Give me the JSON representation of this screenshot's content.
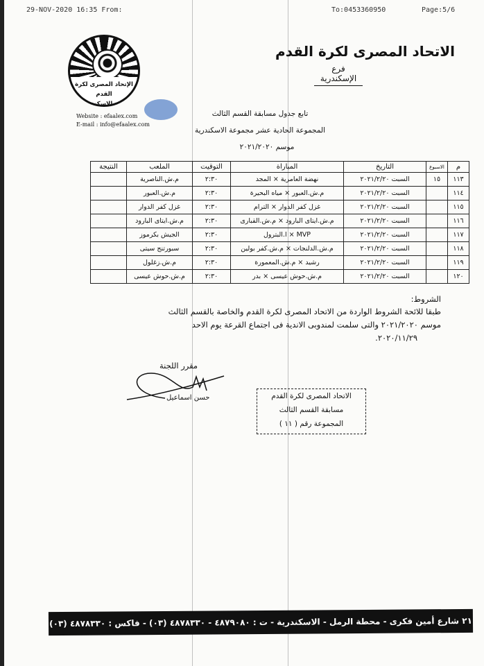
{
  "fax_header": {
    "timestamp": "29-NOV-2020 16:35 From:",
    "to": "To:0453360950",
    "page": "Page:5/6"
  },
  "letterhead": {
    "title": "الاتحاد المصرى لكرة القدم",
    "subtitle": "فرع الإسكندرية",
    "logo_text_1": "الإتحاد المصرى لكرة القدم",
    "logo_text_2": "فرع الاسكندرية",
    "website": "Website : efaalex.com",
    "email": "E-mail : info@efaalex.com"
  },
  "document": {
    "heading_1": "تابع جدول مسابقة القسم الثالث",
    "heading_2": "المجموعة الحادية عشر مجموعة الاسكندرية",
    "heading_3": "موسم ٢٠٢١/٢٠٢٠"
  },
  "table": {
    "headers": [
      "م",
      "الاسبوع",
      "التاريخ",
      "المباراة",
      "التوقيت",
      "الملعب",
      "النتيجة"
    ],
    "rows": [
      {
        "no": "١١٣",
        "week": "١٥",
        "date": "السبت ٢٠٢١/٢/٢٠",
        "match": "نهضة العامرية × المجد",
        "time": "٢:٣٠",
        "venue": "م.ش.الناصرية",
        "result": ""
      },
      {
        "no": "١١٤",
        "week": "",
        "date": "السبت ٢٠٢١/٢/٢٠",
        "match": "م.ش.العبور × مياه البحيرة",
        "time": "٢:٣٠",
        "venue": "م.ش.العبور",
        "result": ""
      },
      {
        "no": "١١٥",
        "week": "",
        "date": "السبت ٢٠٢١/٢/٢٠",
        "match": "غزل كفر الدوار × الترام",
        "time": "٢:٣٠",
        "venue": "غزل كفر الدوار",
        "result": ""
      },
      {
        "no": "١١٦",
        "week": "",
        "date": "السبت ٢٠٢١/٢/٢٠",
        "match": "م.ش.ايتاى البارود × م.ش.القبارى",
        "time": "٢:٣٠",
        "venue": "م.ش.ايتاى البارود",
        "result": ""
      },
      {
        "no": "١١٧",
        "week": "",
        "date": "السبت ٢٠٢١/٢/٢٠",
        "match": "MVP × ا.البترول",
        "time": "٢:٣٠",
        "venue": "الجيش بكرموز",
        "result": ""
      },
      {
        "no": "١١٨",
        "week": "",
        "date": "السبت ٢٠٢١/٢/٢٠",
        "match": "م.ش.الدلنجات × م.ش.كفر بولين",
        "time": "٢:٣٠",
        "venue": "سبورتنج سيتى",
        "result": ""
      },
      {
        "no": "١١٩",
        "week": "",
        "date": "السبت ٢٠٢١/٢/٢٠",
        "match": "رشيد × م.ش.المعمورة",
        "time": "٢:٣٠",
        "venue": "م.ش.زغلول",
        "result": ""
      },
      {
        "no": "١٢٠",
        "week": "",
        "date": "السبت ٢٠٢١/٢/٢٠",
        "match": "م.ش.حوش عيسى × بدر",
        "time": "٢:٣٠",
        "venue": "م.ش.حوش عيسى",
        "result": ""
      }
    ]
  },
  "conditions": {
    "label": "الشروط:",
    "line_1": "طبقا للائحة الشروط الواردة من الاتحاد المصرى لكرة القدم والخاصة بالقسم الثالث",
    "line_2": "موسم ٢٠٢١/٢٠٢٠ والتى سلمت لمندوبى الاندية فى اجتماع القرعة يوم الاحد",
    "line_3": "٢٠٢٠/١١/٢٩."
  },
  "signature": {
    "label": "مقرر اللجنة",
    "name": "حسن اسماعيل"
  },
  "stamp": {
    "line_1": "الاتحاد المصرى لكرة القدم",
    "line_2": "مسابقة القسم الثالث",
    "line_3": "المجموعة رقم ( ١١ )"
  },
  "footer": {
    "address": "٢١ شارع أمين فكرى - محطة الرمل - الاسكندرية - ت : ٤٨٧٩٠٨٠ - ٤٨٧٨٣٣٠ (٠٣) - فاكس : ٤٨٧٨٣٣٠ (٠٣)"
  }
}
